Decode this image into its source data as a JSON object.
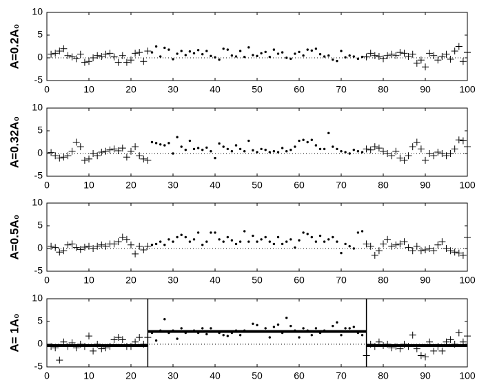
{
  "chart_data": [
    {
      "type": "scatter",
      "ylabel": "A=0.2A₀",
      "xlim": [
        0,
        100
      ],
      "ylim": [
        -5,
        10
      ],
      "xticks": [
        0,
        10,
        20,
        30,
        40,
        50,
        60,
        70,
        80,
        90,
        100
      ],
      "yticks": [
        -5,
        0,
        5,
        10
      ],
      "hline": 0,
      "dot_range": [
        25,
        75
      ],
      "x": [
        1,
        2,
        3,
        4,
        5,
        6,
        7,
        8,
        9,
        10,
        11,
        12,
        13,
        14,
        15,
        16,
        17,
        18,
        19,
        20,
        21,
        22,
        23,
        24,
        25,
        26,
        27,
        28,
        29,
        30,
        31,
        32,
        33,
        34,
        35,
        36,
        37,
        38,
        39,
        40,
        41,
        42,
        43,
        44,
        45,
        46,
        47,
        48,
        49,
        50,
        51,
        52,
        53,
        54,
        55,
        56,
        57,
        58,
        59,
        60,
        61,
        62,
        63,
        64,
        65,
        66,
        67,
        68,
        69,
        70,
        71,
        72,
        73,
        74,
        75,
        76,
        77,
        78,
        79,
        80,
        81,
        82,
        83,
        84,
        85,
        86,
        87,
        88,
        89,
        90,
        91,
        92,
        93,
        94,
        95,
        96,
        97,
        98,
        99,
        100
      ],
      "values": [
        0.8,
        1,
        1.5,
        2,
        0.5,
        0.2,
        -0.2,
        0.8,
        -1,
        -0.8,
        0,
        0.5,
        0.3,
        0.8,
        1,
        0.2,
        -1,
        0.5,
        -1,
        -0.5,
        1,
        1.2,
        -0.8,
        1.5,
        1.2,
        2.5,
        0.3,
        2.2,
        1.8,
        -0.3,
        0.9,
        1.5,
        0.6,
        1.4,
        1,
        1.7,
        0.8,
        1.5,
        0.4,
        0.1,
        -0.4,
        2,
        1.8,
        0.5,
        0.3,
        1.5,
        0.2,
        2.3,
        0.6,
        0.4,
        1,
        1.3,
        0.2,
        1.8,
        0.9,
        1.2,
        0,
        -0.2,
        0.9,
        1.3,
        0.5,
        1.8,
        1.6,
        2,
        0.8,
        0.3,
        0.5,
        -0.4,
        -0.7,
        1.5,
        0.1,
        0.5,
        0.3,
        -0.2,
        0.2,
        0.2,
        1,
        0.5,
        0.3,
        -0.2,
        0.5,
        0.8,
        0.5,
        1.2,
        1,
        0.3,
        0.8,
        -1.2,
        -0.5,
        -2,
        1,
        0.5,
        -0.5,
        0.3,
        0.8,
        -0.3,
        1.5,
        2.5,
        -0.8,
        1.2
      ]
    },
    {
      "type": "scatter",
      "ylabel": "A=0.32A₀",
      "xlim": [
        0,
        100
      ],
      "ylim": [
        -5,
        10
      ],
      "xticks": [
        0,
        10,
        20,
        30,
        40,
        50,
        60,
        70,
        80,
        90,
        100
      ],
      "yticks": [
        -5,
        0,
        5,
        10
      ],
      "hline": 0,
      "dot_range": [
        25,
        75
      ],
      "x": [
        1,
        2,
        3,
        4,
        5,
        6,
        7,
        8,
        9,
        10,
        11,
        12,
        13,
        14,
        15,
        16,
        17,
        18,
        19,
        20,
        21,
        22,
        23,
        24,
        25,
        26,
        27,
        28,
        29,
        30,
        31,
        32,
        33,
        34,
        35,
        36,
        37,
        38,
        39,
        40,
        41,
        42,
        43,
        44,
        45,
        46,
        47,
        48,
        49,
        50,
        51,
        52,
        53,
        54,
        55,
        56,
        57,
        58,
        59,
        60,
        61,
        62,
        63,
        64,
        65,
        66,
        67,
        68,
        69,
        70,
        71,
        72,
        73,
        74,
        75,
        76,
        77,
        78,
        79,
        80,
        81,
        82,
        83,
        84,
        85,
        86,
        87,
        88,
        89,
        90,
        91,
        92,
        93,
        94,
        95,
        96,
        97,
        98,
        99,
        100
      ],
      "values": [
        0.2,
        -0.5,
        -1,
        -0.8,
        -0.5,
        0.5,
        2.5,
        1.5,
        -1.5,
        -1.2,
        0,
        -0.5,
        0.3,
        0.5,
        0.8,
        1,
        0.6,
        1.2,
        -0.8,
        0.5,
        1.5,
        -0.5,
        -1.2,
        -1.5,
        2.5,
        2.3,
        2,
        1.8,
        2.3,
        0,
        3.6,
        1.5,
        0.8,
        2.8,
        1,
        1.2,
        0.8,
        1.3,
        0.5,
        -1,
        2.2,
        1.5,
        1,
        0.5,
        1.8,
        1,
        0.5,
        2.8,
        0.7,
        0.3,
        1,
        0.8,
        0.3,
        0.5,
        0.3,
        1.2,
        0.5,
        0.8,
        1.5,
        2.8,
        3,
        2.5,
        3,
        1.8,
        1,
        1,
        4.5,
        1.5,
        1,
        0.5,
        0.3,
        0,
        0.8,
        0.5,
        0.3,
        1,
        0.8,
        1.5,
        1.2,
        0.5,
        0,
        -0.5,
        0.5,
        -1,
        -1.5,
        -0.5,
        1.5,
        2.5,
        1,
        -1.5,
        0,
        -0.5,
        0.3,
        0,
        -0.5,
        0,
        1,
        3,
        2.8,
        1.5
      ]
    },
    {
      "type": "scatter",
      "ylabel": "A=0.5A₀",
      "xlim": [
        0,
        100
      ],
      "ylim": [
        -5,
        10
      ],
      "xticks": [
        0,
        10,
        20,
        30,
        40,
        50,
        60,
        70,
        80,
        90,
        100
      ],
      "yticks": [
        -5,
        0,
        5,
        10
      ],
      "hline": 0,
      "dot_range": [
        25,
        75
      ],
      "x": [
        1,
        2,
        3,
        4,
        5,
        6,
        7,
        8,
        9,
        10,
        11,
        12,
        13,
        14,
        15,
        16,
        17,
        18,
        19,
        20,
        21,
        22,
        23,
        24,
        25,
        26,
        27,
        28,
        29,
        30,
        31,
        32,
        33,
        34,
        35,
        36,
        37,
        38,
        39,
        40,
        41,
        42,
        43,
        44,
        45,
        46,
        47,
        48,
        49,
        50,
        51,
        52,
        53,
        54,
        55,
        56,
        57,
        58,
        59,
        60,
        61,
        62,
        63,
        64,
        65,
        66,
        67,
        68,
        69,
        70,
        71,
        72,
        73,
        74,
        75,
        76,
        77,
        78,
        79,
        80,
        81,
        82,
        83,
        84,
        85,
        86,
        87,
        88,
        89,
        90,
        91,
        92,
        93,
        94,
        95,
        96,
        97,
        98,
        99,
        100
      ],
      "values": [
        0.5,
        0.2,
        -0.8,
        -0.5,
        0.8,
        1,
        0.2,
        -0.2,
        0.3,
        0.5,
        0,
        0.5,
        0.8,
        0.5,
        1,
        1,
        1.5,
        2.5,
        2,
        0.8,
        -1.2,
        0.5,
        -0.3,
        0.5,
        0.8,
        1,
        1.5,
        0.8,
        2,
        1.5,
        2.5,
        3,
        2.5,
        1.5,
        2,
        3.5,
        0.8,
        1.5,
        3.5,
        3.5,
        2,
        1.5,
        2.5,
        1.8,
        1,
        1.5,
        3.8,
        1.5,
        2.8,
        1.5,
        2,
        2.5,
        1.5,
        1,
        2.5,
        1,
        1.5,
        2,
        0.2,
        1.8,
        3.5,
        3.2,
        2.5,
        1.5,
        2.8,
        1.5,
        2,
        2.5,
        1.5,
        -1,
        1,
        0.5,
        0,
        3.5,
        3.8,
        1,
        0.5,
        -1.5,
        -0.5,
        1,
        2,
        0.5,
        0.8,
        1,
        1.5,
        0.2,
        -0.5,
        0.5,
        -0.5,
        -0.3,
        0,
        -0.5,
        0.8,
        1.5,
        0,
        -0.5,
        -0.8,
        -1,
        -1.5,
        2.5
      ]
    },
    {
      "type": "scatter",
      "ylabel": "A= 1A₀",
      "xlim": [
        0,
        100
      ],
      "ylim": [
        -5,
        10
      ],
      "xticks": [
        0,
        10,
        20,
        30,
        40,
        50,
        60,
        70,
        80,
        90,
        100
      ],
      "yticks": [
        -5,
        0,
        5,
        10
      ],
      "hline": 0,
      "dot_range": [
        25,
        75
      ],
      "vlines": [
        24,
        76
      ],
      "level_lines": [
        {
          "x": [
            0,
            24
          ],
          "y": -0.3
        },
        {
          "x": [
            24,
            76
          ],
          "y": 2.8
        },
        {
          "x": [
            76,
            100
          ],
          "y": -0.3
        }
      ],
      "x": [
        1,
        2,
        3,
        4,
        5,
        6,
        7,
        8,
        9,
        10,
        11,
        12,
        13,
        14,
        15,
        16,
        17,
        18,
        19,
        20,
        21,
        22,
        23,
        24,
        25,
        26,
        27,
        28,
        29,
        30,
        31,
        32,
        33,
        34,
        35,
        36,
        37,
        38,
        39,
        40,
        41,
        42,
        43,
        44,
        45,
        46,
        47,
        48,
        49,
        50,
        51,
        52,
        53,
        54,
        55,
        56,
        57,
        58,
        59,
        60,
        61,
        62,
        63,
        64,
        65,
        66,
        67,
        68,
        69,
        70,
        71,
        72,
        73,
        74,
        75,
        76,
        77,
        78,
        79,
        80,
        81,
        82,
        83,
        84,
        85,
        86,
        87,
        88,
        89,
        90,
        91,
        92,
        93,
        94,
        95,
        96,
        97,
        98,
        99,
        100
      ],
      "values": [
        -0.5,
        -0.8,
        -3.5,
        0.5,
        -0.5,
        0.3,
        -0.8,
        0,
        -0.5,
        1.8,
        -1.5,
        0,
        -1,
        -0.8,
        -0.5,
        1,
        1.5,
        1,
        -0.5,
        -0.5,
        0.5,
        1.5,
        0,
        1.5,
        2.5,
        0.8,
        3,
        5.5,
        2.5,
        3,
        1.2,
        3.5,
        2.5,
        2.8,
        3,
        2.5,
        3.5,
        2.2,
        3.5,
        2.8,
        2.5,
        2,
        1.8,
        2.5,
        3,
        2,
        3,
        2.8,
        4.5,
        4.2,
        2.8,
        3.5,
        1.5,
        3.8,
        4.3,
        2.5,
        5.8,
        4,
        3,
        1.5,
        3.5,
        3,
        2,
        3.5,
        2.5,
        3,
        2.8,
        4,
        4.8,
        2,
        3.5,
        3.5,
        3.8,
        2.5,
        2,
        -2.5,
        0,
        -0.5,
        0.5,
        -0.3,
        0,
        -0.8,
        -0.5,
        -1,
        0,
        -0.5,
        2,
        -1,
        -2.5,
        -2.8,
        0.5,
        -1.5,
        -0.5,
        -1.5,
        0.5,
        1,
        0,
        2.5,
        0.5,
        1.8
      ]
    }
  ]
}
